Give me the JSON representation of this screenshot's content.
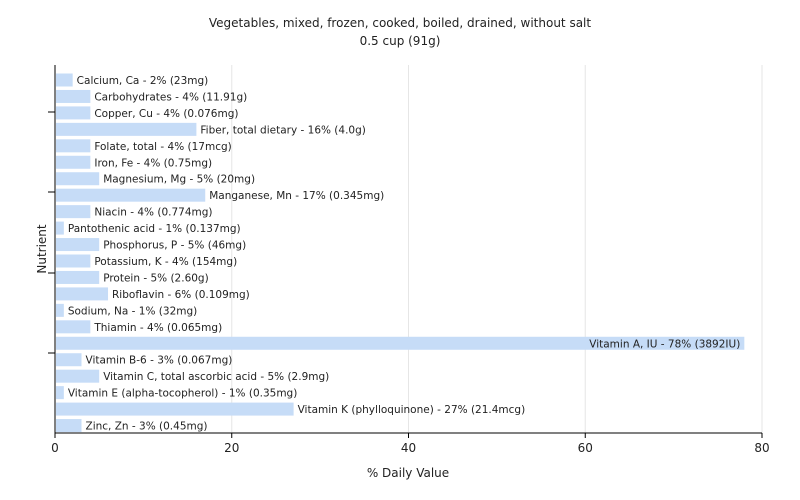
{
  "chart_data": {
    "type": "bar",
    "orientation": "horizontal",
    "title": "Vegetables, mixed, frozen, cooked, boiled, drained, without salt",
    "subtitle": "0.5 cup (91g)",
    "xlabel": "% Daily Value",
    "ylabel": "Nutrient",
    "xlim": [
      0,
      80
    ],
    "xticks": [
      0,
      20,
      40,
      60,
      80
    ],
    "grid": true,
    "bar_color": "#c6dcf7",
    "grid_color": "#e6e6e6",
    "axis_color": "#000000",
    "categories": [
      "Calcium, Ca - 2% (23mg)",
      "Carbohydrates - 4% (11.91g)",
      "Copper, Cu - 4% (0.076mg)",
      "Fiber, total dietary - 16% (4.0g)",
      "Folate, total - 4% (17mcg)",
      "Iron, Fe - 4% (0.75mg)",
      "Magnesium, Mg - 5% (20mg)",
      "Manganese, Mn - 17% (0.345mg)",
      "Niacin - 4% (0.774mg)",
      "Pantothenic acid - 1% (0.137mg)",
      "Phosphorus, P - 5% (46mg)",
      "Potassium, K - 4% (154mg)",
      "Protein - 5% (2.60g)",
      "Riboflavin - 6% (0.109mg)",
      "Sodium, Na - 1% (32mg)",
      "Thiamin - 4% (0.065mg)",
      "Vitamin A, IU - 78% (3892IU)",
      "Vitamin B-6 - 3% (0.067mg)",
      "Vitamin C, total ascorbic acid - 5% (2.9mg)",
      "Vitamin E (alpha-tocopherol) - 1% (0.35mg)",
      "Vitamin K (phylloquinone) - 27% (21.4mcg)",
      "Zinc, Zn - 3% (0.45mg)"
    ],
    "values": [
      2,
      4,
      4,
      16,
      4,
      4,
      5,
      17,
      4,
      1,
      5,
      4,
      5,
      6,
      1,
      4,
      78,
      3,
      5,
      1,
      27,
      3
    ]
  }
}
